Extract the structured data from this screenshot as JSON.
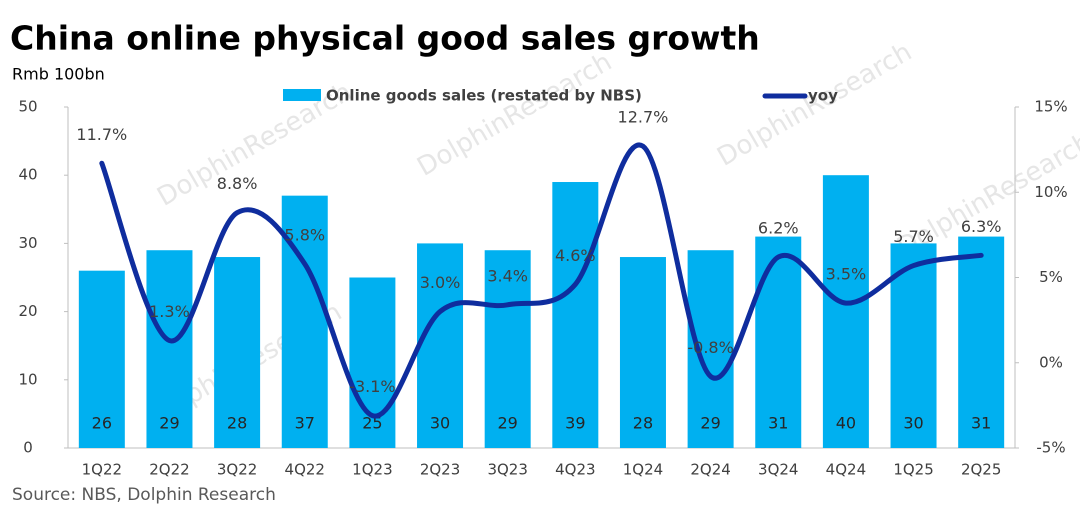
{
  "chart_data": {
    "type": "bar-line",
    "title": "China online physical good sales growth",
    "y_label": "Rmb 100bn",
    "source": "Source: NBS, Dolphin Research",
    "watermark": "DolphinResearch",
    "categories": [
      "1Q22",
      "2Q22",
      "3Q22",
      "4Q22",
      "1Q23",
      "2Q23",
      "3Q23",
      "4Q23",
      "1Q24",
      "2Q24",
      "3Q24",
      "4Q24",
      "1Q25",
      "2Q25"
    ],
    "series": [
      {
        "name": "Online goods sales (restated by NBS)",
        "type": "bar",
        "color": "#00b0f0",
        "values": [
          26,
          29,
          28,
          37,
          25,
          30,
          29,
          39,
          28,
          29,
          31,
          40,
          30,
          31
        ]
      },
      {
        "name": "yoy",
        "type": "line",
        "axis": "y2",
        "color": "#0f2d9e",
        "values": [
          11.7,
          1.3,
          8.8,
          5.8,
          -3.1,
          3.0,
          3.4,
          4.6,
          12.7,
          -0.8,
          6.2,
          3.5,
          5.7,
          6.3
        ],
        "value_labels": [
          "11.7%",
          "1.3%",
          "8.8%",
          "5.8%",
          "-3.1%",
          "3.0%",
          "3.4%",
          "4.6%",
          "12.7%",
          "-0.8%",
          "6.2%",
          "3.5%",
          "5.7%",
          "6.3%"
        ]
      }
    ],
    "ylim": [
      0,
      50
    ],
    "yticks": [
      0,
      10,
      20,
      30,
      40,
      50
    ],
    "y2lim": [
      -5,
      15
    ],
    "y2ticks": [
      {
        "value": -5,
        "label": "-5%"
      },
      {
        "value": 0,
        "label": "0%"
      },
      {
        "value": 5,
        "label": "5%"
      },
      {
        "value": 10,
        "label": "10%"
      },
      {
        "value": 15,
        "label": "15%"
      }
    ]
  }
}
